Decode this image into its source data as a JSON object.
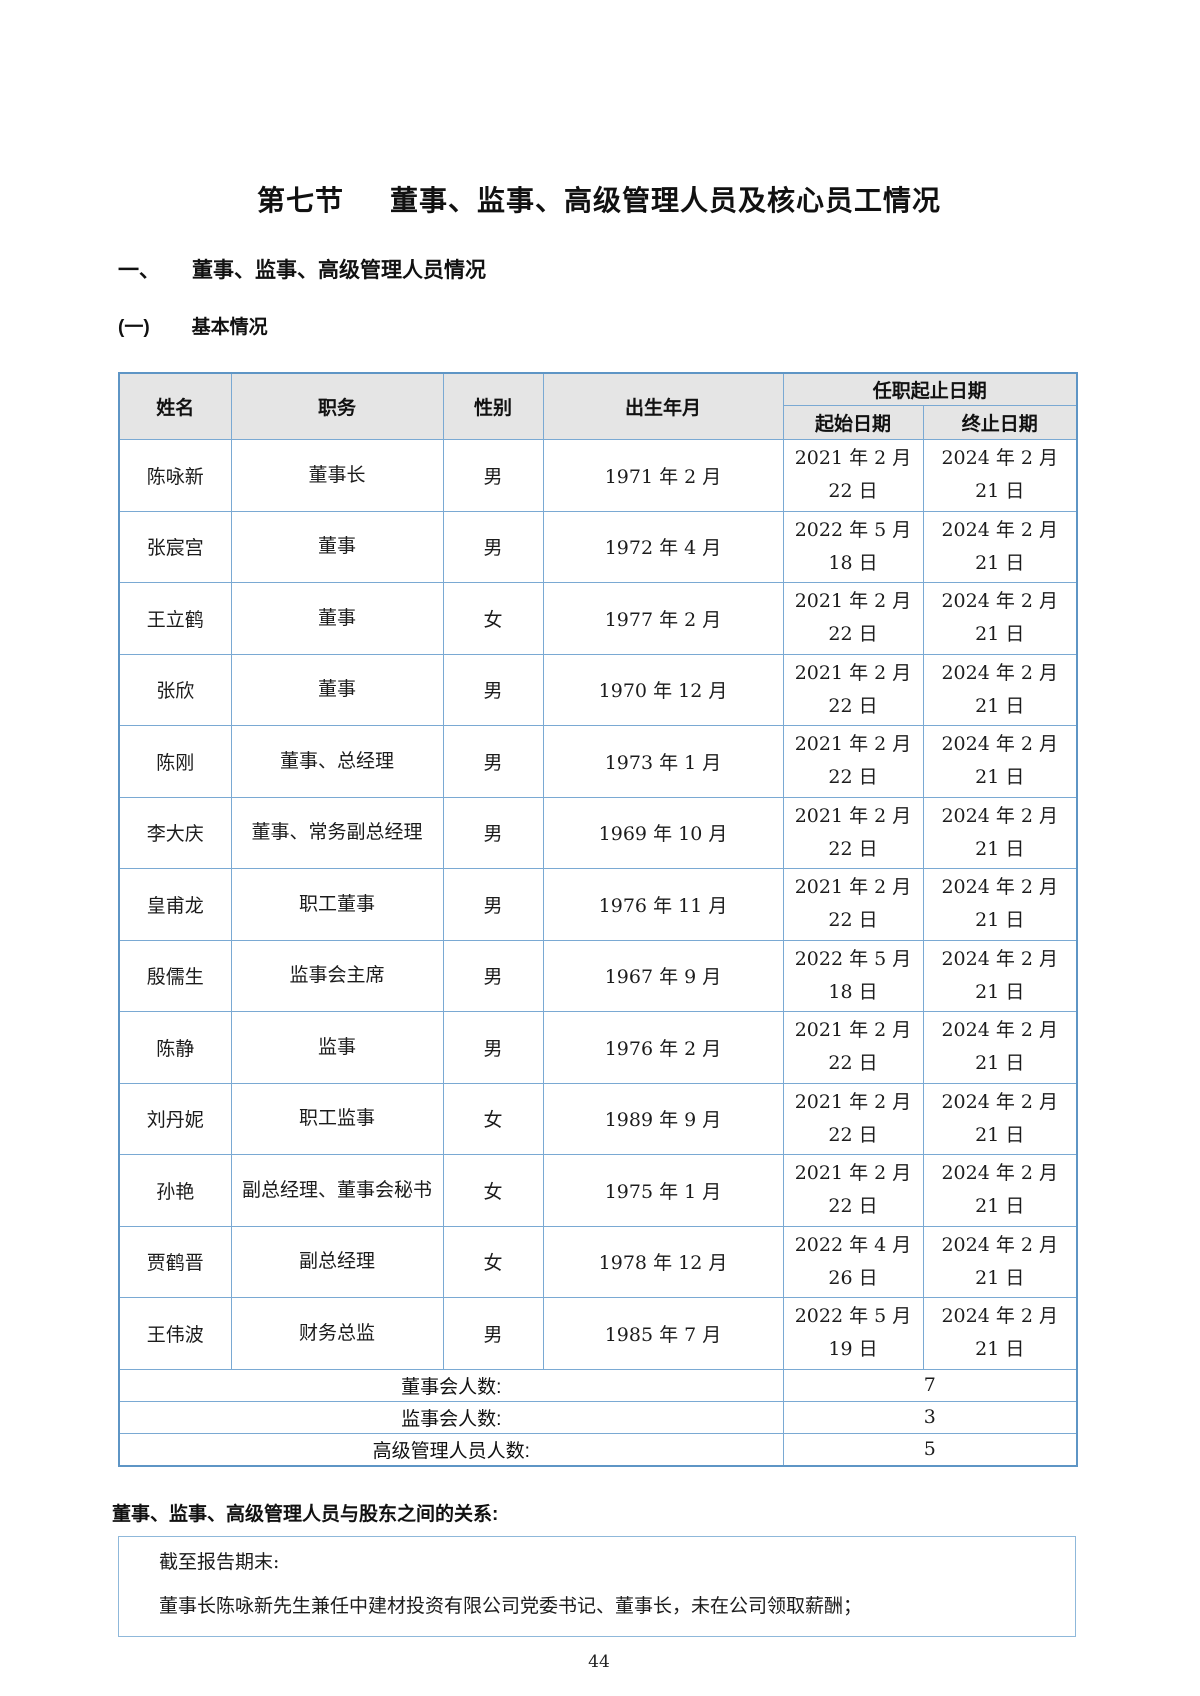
{
  "colors": {
    "table_border_outer": "#5e95c5",
    "table_border_inner": "#7aa9d3",
    "header_background": "#e5e5e5"
  },
  "title": {
    "prefix": "第七节",
    "text": "董事、监事、高级管理人员及核心员工情况"
  },
  "section": {
    "num": "一、",
    "label": "董事、监事、高级管理人员情况"
  },
  "subsection": {
    "num": "(一)",
    "label": "基本情况"
  },
  "table": {
    "headers": {
      "name": "姓名",
      "position": "职务",
      "gender": "性别",
      "birth": "出生年月",
      "term": "任职起止日期",
      "start": "起始日期",
      "end": "终止日期"
    },
    "rows": [
      {
        "name": "陈咏新",
        "position": "董事长",
        "gender": "男",
        "birth": "1971 年 2 月",
        "start": "2021 年 2 月 22 日",
        "end": "2024 年 2 月 21 日"
      },
      {
        "name": "张宸宫",
        "position": "董事",
        "gender": "男",
        "birth": "1972 年 4 月",
        "start": "2022 年 5 月 18 日",
        "end": "2024 年 2 月 21 日"
      },
      {
        "name": "王立鹤",
        "position": "董事",
        "gender": "女",
        "birth": "1977 年 2 月",
        "start": "2021 年 2 月 22 日",
        "end": "2024 年 2 月 21 日"
      },
      {
        "name": "张欣",
        "position": "董事",
        "gender": "男",
        "birth": "1970 年 12 月",
        "start": "2021 年 2 月 22 日",
        "end": "2024 年 2 月 21 日"
      },
      {
        "name": "陈刚",
        "position": "董事、总经理",
        "gender": "男",
        "birth": "1973 年 1 月",
        "start": "2021 年 2 月 22 日",
        "end": "2024 年 2 月 21 日"
      },
      {
        "name": "李大庆",
        "position": "董事、常务副总经理",
        "gender": "男",
        "birth": "1969 年 10 月",
        "start": "2021 年 2 月 22 日",
        "end": "2024 年 2 月 21 日"
      },
      {
        "name": "皇甫龙",
        "position": "职工董事",
        "gender": "男",
        "birth": "1976 年 11 月",
        "start": "2021 年 2 月 22 日",
        "end": "2024 年 2 月 21 日"
      },
      {
        "name": "殷儒生",
        "position": "监事会主席",
        "gender": "男",
        "birth": "1967 年 9 月",
        "start": "2022 年 5 月 18 日",
        "end": "2024 年 2 月 21 日"
      },
      {
        "name": "陈静",
        "position": "监事",
        "gender": "男",
        "birth": "1976 年 2 月",
        "start": "2021 年 2 月 22 日",
        "end": "2024 年 2 月 21 日"
      },
      {
        "name": "刘丹妮",
        "position": "职工监事",
        "gender": "女",
        "birth": "1989 年 9 月",
        "start": "2021 年 2 月 22 日",
        "end": "2024 年 2 月 21 日"
      },
      {
        "name": "孙艳",
        "position": "副总经理、董事会秘书",
        "gender": "女",
        "birth": "1975 年 1 月",
        "start": "2021 年 2 月 22 日",
        "end": "2024 年 2 月 21 日"
      },
      {
        "name": "贾鹤晋",
        "position": "副总经理",
        "gender": "女",
        "birth": "1978 年 12 月",
        "start": "2022 年 4 月 26 日",
        "end": "2024 年 2 月 21 日"
      },
      {
        "name": "王伟波",
        "position": "财务总监",
        "gender": "男",
        "birth": "1985 年 7 月",
        "start": "2022 年 5 月 19 日",
        "end": "2024 年 2 月 21 日"
      }
    ],
    "summary": [
      {
        "label": "董事会人数:",
        "value": "7"
      },
      {
        "label": "监事会人数:",
        "value": "3"
      },
      {
        "label": "高级管理人员人数:",
        "value": "5"
      }
    ]
  },
  "relations": {
    "heading": "董事、监事、高级管理人员与股东之间的关系:",
    "lines": [
      "截至报告期末:",
      "董事长陈咏新先生兼任中建材投资有限公司党委书记、董事长，未在公司领取薪酬；"
    ]
  },
  "page_number": "44"
}
